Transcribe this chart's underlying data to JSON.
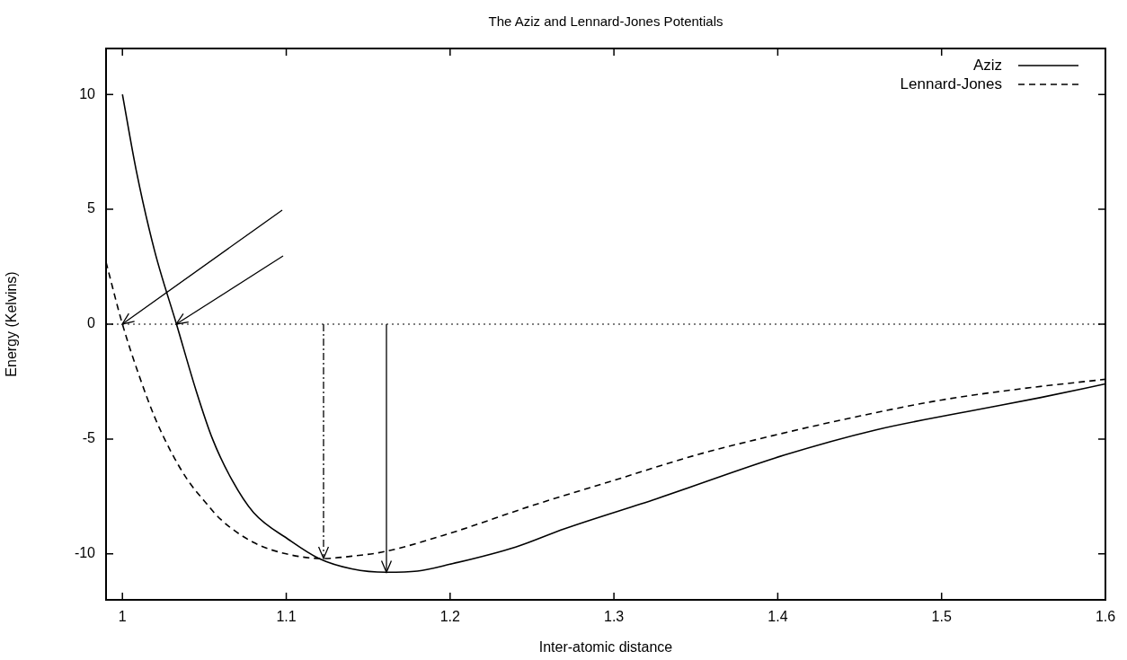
{
  "chart_data": {
    "type": "line",
    "title": "The Aziz and Lennard-Jones Potentials",
    "xlabel": "Inter-atomic distance",
    "ylabel": "Energy (Kelvins)",
    "xlim": [
      0.99,
      1.6
    ],
    "xticks": [
      1,
      1.1,
      1.2,
      1.3,
      1.4,
      1.5,
      1.6
    ],
    "ylim": [
      -12,
      12
    ],
    "yticks": [
      -10,
      -5,
      0,
      5,
      10
    ],
    "grid": false,
    "legend": "top right",
    "marker": "none",
    "ref_lines": [
      {
        "axis": "y",
        "value": 0,
        "color": "#000000",
        "line_style": "dotted"
      }
    ],
    "series": [
      {
        "name": "Aziz",
        "color": "#000000",
        "line_style": "solid",
        "x": [
          1.0,
          1.0084,
          1.0196,
          1.033,
          1.045,
          1.055,
          1.067,
          1.08,
          1.102,
          1.12,
          1.14,
          1.161,
          1.18,
          1.2,
          1.24,
          1.27,
          1.326,
          1.404,
          1.46,
          1.516,
          1.56,
          1.6
        ],
        "values": [
          10,
          6.7,
          3.2,
          0,
          -2.9,
          -5,
          -6.8,
          -8.2,
          -9.4,
          -10.2,
          -10.65,
          -10.8,
          -10.75,
          -10.45,
          -9.7,
          -8.9,
          -7.6,
          -5.7,
          -4.6,
          -3.8,
          -3.2,
          -2.6
        ]
      },
      {
        "name": "Lennard-Jones",
        "color": "#000000",
        "line_style": "dashed",
        "x": [
          0.99,
          1.0,
          1.01,
          1.02,
          1.03,
          1.04,
          1.05,
          1.06,
          1.08,
          1.1,
          1.1225,
          1.14,
          1.16,
          1.2,
          1.25,
          1.3,
          1.35,
          1.4,
          1.45,
          1.5,
          1.55,
          1.6
        ],
        "values": [
          2.7,
          0,
          -2.2,
          -4.1,
          -5.6,
          -6.8,
          -7.7,
          -8.5,
          -9.5,
          -10,
          -10.2,
          -10.1,
          -9.9,
          -9.1,
          -7.9,
          -6.8,
          -5.7,
          -4.8,
          -4,
          -3.3,
          -2.8,
          -2.4
        ]
      }
    ]
  }
}
